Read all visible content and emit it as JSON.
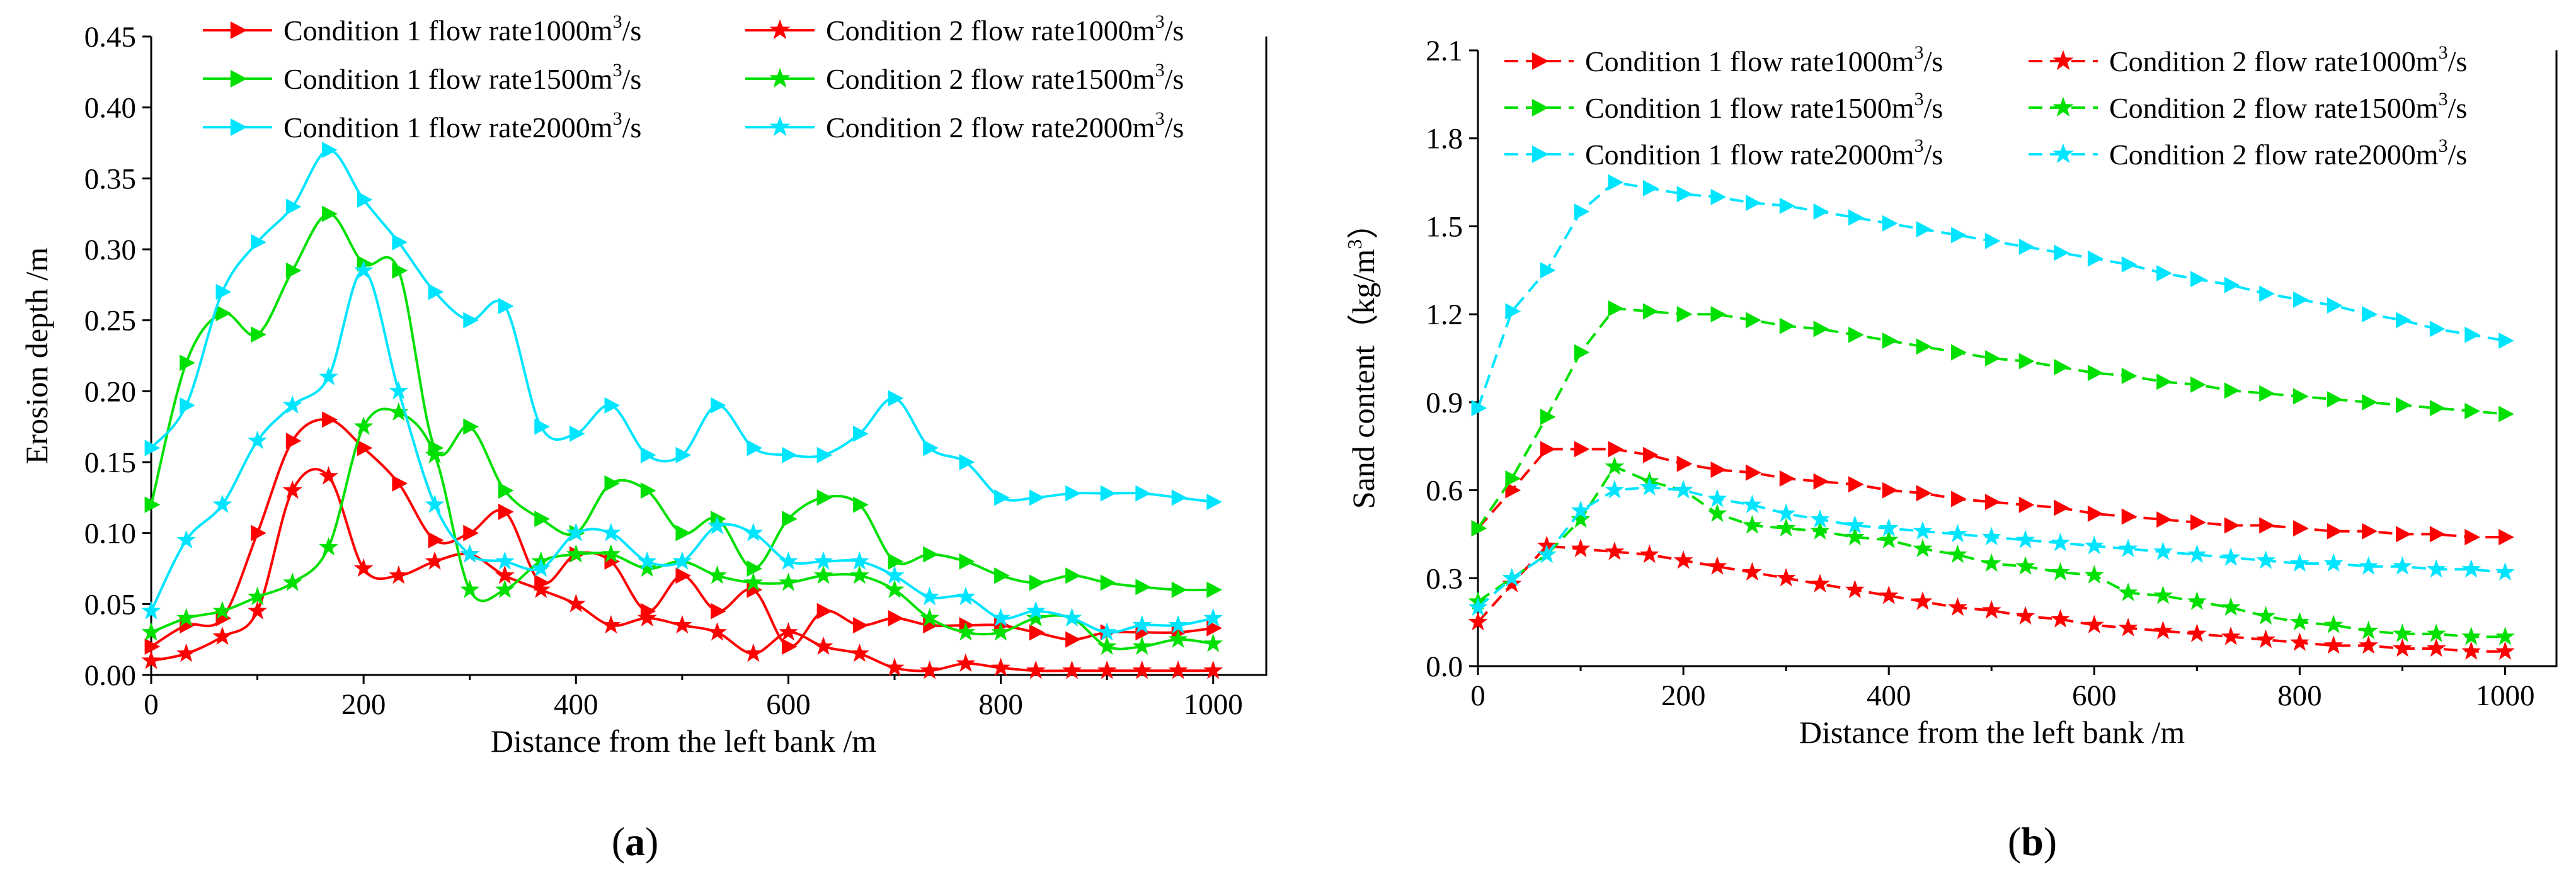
{
  "chart_data": [
    {
      "panel": "a",
      "type": "line",
      "panel_label_open": "(",
      "panel_label_letter": "a",
      "panel_label_close": ")",
      "xlabel": "Distance from the left bank /m",
      "ylabel": "Erosion depth /m",
      "xlim": [
        0,
        1050
      ],
      "ylim": [
        0,
        0.45
      ],
      "xticks": [
        0,
        200,
        400,
        600,
        800,
        1000
      ],
      "yticks": [
        0.0,
        0.05,
        0.1,
        0.15,
        0.2,
        0.25,
        0.3,
        0.35,
        0.4,
        0.45
      ],
      "ytick_labels": [
        "0.00",
        "0.05",
        "0.10",
        "0.15",
        "0.20",
        "0.25",
        "0.30",
        "0.35",
        "0.40",
        "0.45"
      ],
      "legend_position": "top",
      "series": [
        {
          "name": "Condition 1 flow rate1000m3/s",
          "legend_text": "Condition 1 flow rate1000m",
          "legend_sup": "3",
          "legend_suffix": "/s",
          "color": "#ff0000",
          "marker": "triangle",
          "dashed": false,
          "x": [
            0,
            33,
            67,
            100,
            133,
            167,
            200,
            233,
            267,
            300,
            333,
            367,
            400,
            433,
            467,
            500,
            533,
            567,
            600,
            633,
            667,
            700,
            733,
            767,
            800,
            833,
            867,
            900,
            933,
            967,
            1000
          ],
          "y": [
            0.02,
            0.035,
            0.04,
            0.1,
            0.165,
            0.18,
            0.16,
            0.135,
            0.095,
            0.1,
            0.115,
            0.065,
            0.085,
            0.08,
            0.045,
            0.07,
            0.045,
            0.06,
            0.02,
            0.045,
            0.035,
            0.04,
            0.035,
            0.035,
            0.035,
            0.03,
            0.025,
            0.03,
            0.03,
            0.03,
            0.033
          ]
        },
        {
          "name": "Condition 2 flow rate1000m3/s",
          "legend_text": "Condition 2 flow rate1000m",
          "legend_sup": "3",
          "legend_suffix": "/s",
          "color": "#ff0000",
          "marker": "star",
          "dashed": false,
          "x": [
            0,
            33,
            67,
            100,
            133,
            167,
            200,
            233,
            267,
            300,
            333,
            367,
            400,
            433,
            467,
            500,
            533,
            567,
            600,
            633,
            667,
            700,
            733,
            767,
            800,
            833,
            867,
            900,
            933,
            967,
            1000
          ],
          "y": [
            0.01,
            0.015,
            0.027,
            0.045,
            0.13,
            0.14,
            0.075,
            0.07,
            0.08,
            0.085,
            0.07,
            0.06,
            0.05,
            0.035,
            0.04,
            0.035,
            0.03,
            0.015,
            0.03,
            0.02,
            0.015,
            0.005,
            0.003,
            0.008,
            0.005,
            0.003,
            0.003,
            0.003,
            0.003,
            0.003,
            0.003
          ]
        },
        {
          "name": "Condition 1 flow rate1500m3/s",
          "legend_text": "Condition 1 flow rate1500m",
          "legend_sup": "3",
          "legend_suffix": "/s",
          "color": "#00e000",
          "marker": "triangle",
          "dashed": false,
          "x": [
            0,
            33,
            67,
            100,
            133,
            167,
            200,
            233,
            267,
            300,
            333,
            367,
            400,
            433,
            467,
            500,
            533,
            567,
            600,
            633,
            667,
            700,
            733,
            767,
            800,
            833,
            867,
            900,
            933,
            967,
            1000
          ],
          "y": [
            0.12,
            0.22,
            0.255,
            0.24,
            0.285,
            0.325,
            0.29,
            0.285,
            0.16,
            0.175,
            0.13,
            0.11,
            0.1,
            0.135,
            0.13,
            0.1,
            0.11,
            0.075,
            0.11,
            0.125,
            0.12,
            0.08,
            0.085,
            0.08,
            0.07,
            0.065,
            0.07,
            0.065,
            0.062,
            0.06,
            0.06
          ]
        },
        {
          "name": "Condition 2 flow rate1500m3/s",
          "legend_text": "Condition 2 flow rate1500m",
          "legend_sup": "3",
          "legend_suffix": "/s",
          "color": "#00e000",
          "marker": "star",
          "dashed": false,
          "x": [
            0,
            33,
            67,
            100,
            133,
            167,
            200,
            233,
            267,
            300,
            333,
            367,
            400,
            433,
            467,
            500,
            533,
            567,
            600,
            633,
            667,
            700,
            733,
            767,
            800,
            833,
            867,
            900,
            933,
            967,
            1000
          ],
          "y": [
            0.03,
            0.04,
            0.045,
            0.055,
            0.065,
            0.09,
            0.175,
            0.185,
            0.155,
            0.06,
            0.06,
            0.08,
            0.085,
            0.085,
            0.075,
            0.08,
            0.07,
            0.065,
            0.065,
            0.07,
            0.07,
            0.06,
            0.04,
            0.03,
            0.03,
            0.04,
            0.04,
            0.02,
            0.02,
            0.025,
            0.022
          ]
        },
        {
          "name": "Condition 1 flow rate2000m3/s",
          "legend_text": "Condition 1 flow rate2000m",
          "legend_sup": "3",
          "legend_suffix": "/s",
          "color": "#00e5ff",
          "marker": "triangle",
          "dashed": false,
          "x": [
            0,
            33,
            67,
            100,
            133,
            167,
            200,
            233,
            267,
            300,
            333,
            367,
            400,
            433,
            467,
            500,
            533,
            567,
            600,
            633,
            667,
            700,
            733,
            767,
            800,
            833,
            867,
            900,
            933,
            967,
            1000
          ],
          "y": [
            0.16,
            0.19,
            0.27,
            0.305,
            0.33,
            0.37,
            0.335,
            0.305,
            0.27,
            0.25,
            0.26,
            0.175,
            0.17,
            0.19,
            0.155,
            0.155,
            0.19,
            0.16,
            0.155,
            0.155,
            0.17,
            0.195,
            0.16,
            0.15,
            0.125,
            0.125,
            0.128,
            0.128,
            0.128,
            0.125,
            0.122
          ]
        },
        {
          "name": "Condition 2 flow rate2000m3/s",
          "legend_text": "Condition 2 flow rate2000m",
          "legend_sup": "3",
          "legend_suffix": "/s",
          "color": "#00e5ff",
          "marker": "star",
          "dashed": false,
          "x": [
            0,
            33,
            67,
            100,
            133,
            167,
            200,
            233,
            267,
            300,
            333,
            367,
            400,
            433,
            467,
            500,
            533,
            567,
            600,
            633,
            667,
            700,
            733,
            767,
            800,
            833,
            867,
            900,
            933,
            967,
            1000
          ],
          "y": [
            0.045,
            0.095,
            0.12,
            0.165,
            0.19,
            0.21,
            0.285,
            0.2,
            0.12,
            0.085,
            0.08,
            0.075,
            0.1,
            0.1,
            0.08,
            0.08,
            0.105,
            0.1,
            0.08,
            0.08,
            0.08,
            0.07,
            0.055,
            0.055,
            0.04,
            0.045,
            0.04,
            0.03,
            0.035,
            0.035,
            0.04
          ]
        }
      ]
    },
    {
      "panel": "b",
      "type": "line",
      "panel_label_open": "(",
      "panel_label_letter": "b",
      "panel_label_close": ")",
      "xlabel": "Distance from the left bank /m",
      "ylabel_main": "Sand content（kg/m",
      "ylabel_sup": "3",
      "ylabel_close": "）",
      "xlim": [
        0,
        1050
      ],
      "ylim": [
        0,
        2.1
      ],
      "xticks": [
        0,
        200,
        400,
        600,
        800,
        1000
      ],
      "yticks": [
        0.0,
        0.3,
        0.6,
        0.9,
        1.2,
        1.5,
        1.8,
        2.1
      ],
      "ytick_labels": [
        "0.0",
        "0.3",
        "0.6",
        "0.9",
        "1.2",
        "1.5",
        "1.8",
        "2.1"
      ],
      "legend_position": "top",
      "series": [
        {
          "name": "Condition 1 flow rate1000m3/s",
          "legend_text": "Condition 1 flow rate1000m",
          "legend_sup": "3",
          "legend_suffix": "/s",
          "color": "#ff0000",
          "marker": "triangle",
          "dashed": true,
          "x": [
            0,
            33,
            67,
            100,
            133,
            167,
            200,
            233,
            267,
            300,
            333,
            367,
            400,
            433,
            467,
            500,
            533,
            567,
            600,
            633,
            667,
            700,
            733,
            767,
            800,
            833,
            867,
            900,
            933,
            967,
            1000
          ],
          "y": [
            0.47,
            0.6,
            0.74,
            0.74,
            0.74,
            0.72,
            0.69,
            0.67,
            0.66,
            0.64,
            0.63,
            0.62,
            0.6,
            0.59,
            0.57,
            0.56,
            0.55,
            0.54,
            0.52,
            0.51,
            0.5,
            0.49,
            0.48,
            0.48,
            0.47,
            0.46,
            0.46,
            0.45,
            0.45,
            0.44,
            0.44
          ]
        },
        {
          "name": "Condition 2 flow rate1000m3/s",
          "legend_text": "Condition 2 flow rate1000m",
          "legend_sup": "3",
          "legend_suffix": "/s",
          "color": "#ff0000",
          "marker": "star",
          "dashed": true,
          "x": [
            0,
            33,
            67,
            100,
            133,
            167,
            200,
            233,
            267,
            300,
            333,
            367,
            400,
            433,
            467,
            500,
            533,
            567,
            600,
            633,
            667,
            700,
            733,
            767,
            800,
            833,
            867,
            900,
            933,
            967,
            1000
          ],
          "y": [
            0.15,
            0.28,
            0.41,
            0.4,
            0.39,
            0.38,
            0.36,
            0.34,
            0.32,
            0.3,
            0.28,
            0.26,
            0.24,
            0.22,
            0.2,
            0.19,
            0.17,
            0.16,
            0.14,
            0.13,
            0.12,
            0.11,
            0.1,
            0.09,
            0.08,
            0.07,
            0.07,
            0.06,
            0.06,
            0.05,
            0.05
          ]
        },
        {
          "name": "Condition 1 flow rate1500m3/s",
          "legend_text": "Condition 1 flow rate1500m",
          "legend_sup": "3",
          "legend_suffix": "/s",
          "color": "#00e000",
          "marker": "triangle",
          "dashed": true,
          "x": [
            0,
            33,
            67,
            100,
            133,
            167,
            200,
            233,
            267,
            300,
            333,
            367,
            400,
            433,
            467,
            500,
            533,
            567,
            600,
            633,
            667,
            700,
            733,
            767,
            800,
            833,
            867,
            900,
            933,
            967,
            1000
          ],
          "y": [
            0.47,
            0.64,
            0.85,
            1.07,
            1.22,
            1.21,
            1.2,
            1.2,
            1.18,
            1.16,
            1.15,
            1.13,
            1.11,
            1.09,
            1.07,
            1.05,
            1.04,
            1.02,
            1.0,
            0.99,
            0.97,
            0.96,
            0.94,
            0.93,
            0.92,
            0.91,
            0.9,
            0.89,
            0.88,
            0.87,
            0.86
          ]
        },
        {
          "name": "Condition 2 flow rate1500m3/s",
          "legend_text": "Condition 2 flow rate1500m",
          "legend_sup": "3",
          "legend_suffix": "/s",
          "color": "#00e000",
          "marker": "star",
          "dashed": true,
          "x": [
            0,
            33,
            67,
            100,
            133,
            167,
            200,
            233,
            267,
            300,
            333,
            367,
            400,
            433,
            467,
            500,
            533,
            567,
            600,
            633,
            667,
            700,
            733,
            767,
            800,
            833,
            867,
            900,
            933,
            967,
            1000
          ],
          "y": [
            0.22,
            0.3,
            0.38,
            0.5,
            0.68,
            0.63,
            0.6,
            0.52,
            0.48,
            0.47,
            0.46,
            0.44,
            0.43,
            0.4,
            0.38,
            0.35,
            0.34,
            0.32,
            0.31,
            0.25,
            0.24,
            0.22,
            0.2,
            0.17,
            0.15,
            0.14,
            0.12,
            0.11,
            0.11,
            0.1,
            0.1
          ]
        },
        {
          "name": "Condition 1 flow rate2000m3/s",
          "legend_text": "Condition 1 flow rate2000m",
          "legend_sup": "3",
          "legend_suffix": "/s",
          "color": "#00e5ff",
          "marker": "triangle",
          "dashed": true,
          "x": [
            0,
            33,
            67,
            100,
            133,
            167,
            200,
            233,
            267,
            300,
            333,
            367,
            400,
            433,
            467,
            500,
            533,
            567,
            600,
            633,
            667,
            700,
            733,
            767,
            800,
            833,
            867,
            900,
            933,
            967,
            1000
          ],
          "y": [
            0.88,
            1.21,
            1.35,
            1.55,
            1.65,
            1.63,
            1.61,
            1.6,
            1.58,
            1.57,
            1.55,
            1.53,
            1.51,
            1.49,
            1.47,
            1.45,
            1.43,
            1.41,
            1.39,
            1.37,
            1.34,
            1.32,
            1.3,
            1.27,
            1.25,
            1.23,
            1.2,
            1.18,
            1.15,
            1.13,
            1.11
          ]
        },
        {
          "name": "Condition 2 flow rate2000m3/s",
          "legend_text": "Condition 2 flow rate2000m",
          "legend_sup": "3",
          "legend_suffix": "/s",
          "color": "#00e5ff",
          "marker": "star",
          "dashed": true,
          "x": [
            0,
            33,
            67,
            100,
            133,
            167,
            200,
            233,
            267,
            300,
            333,
            367,
            400,
            433,
            467,
            500,
            533,
            567,
            600,
            633,
            667,
            700,
            733,
            767,
            800,
            833,
            867,
            900,
            933,
            967,
            1000
          ],
          "y": [
            0.2,
            0.3,
            0.38,
            0.53,
            0.6,
            0.61,
            0.6,
            0.57,
            0.55,
            0.52,
            0.5,
            0.48,
            0.47,
            0.46,
            0.45,
            0.44,
            0.43,
            0.42,
            0.41,
            0.4,
            0.39,
            0.38,
            0.37,
            0.36,
            0.35,
            0.35,
            0.34,
            0.34,
            0.33,
            0.33,
            0.32
          ]
        }
      ]
    }
  ]
}
